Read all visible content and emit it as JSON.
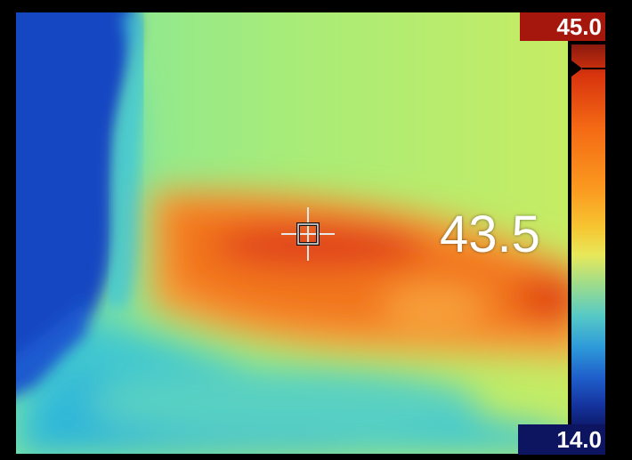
{
  "scale": {
    "max_value": "45.0",
    "min_value": "14.0",
    "max_color": "#a5170d",
    "min_color": "#0d1460"
  },
  "spot": {
    "temperature": "43.5",
    "marker_icon": "crosshair-icon"
  },
  "palette": [
    "#0d1a6a",
    "#1535a0",
    "#2e9bd9",
    "#55c9c6",
    "#9bdc8e",
    "#e8e85a",
    "#fb9a20",
    "#f46a14",
    "#d8340e",
    "#8a1a0e"
  ]
}
